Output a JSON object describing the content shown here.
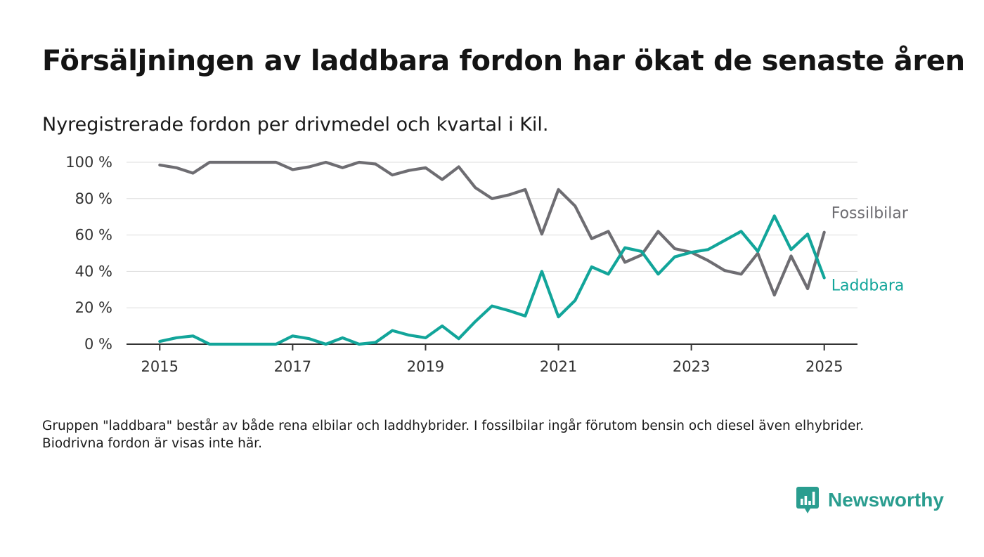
{
  "title": "Försäljningen av laddbara fordon har ökat de senaste åren",
  "subtitle": "Nyregistrerade fordon per drivmedel och kvartal i Kil.",
  "note": "Gruppen \"laddbara\" består av både rena elbilar och laddhybrider. I fossilbilar ingår förutom bensin och diesel även elhybrider. Biodrivna fordon är visas inte här.",
  "brand": {
    "name": "Newsworthy",
    "color": "#2a9d8f",
    "icon": "bar-chart-bubble-icon"
  },
  "chart_data": {
    "type": "line",
    "title": "Försäljningen av laddbara fordon har ökat de senaste åren",
    "subtitle": "Nyregistrerade fordon per drivmedel och kvartal i Kil.",
    "xlabel": "",
    "ylabel": "",
    "x": [
      2015.0,
      2015.25,
      2015.5,
      2015.75,
      2016.0,
      2016.25,
      2016.5,
      2016.75,
      2017.0,
      2017.25,
      2017.5,
      2017.75,
      2018.0,
      2018.25,
      2018.5,
      2018.75,
      2019.0,
      2019.25,
      2019.5,
      2019.75,
      2020.0,
      2020.25,
      2020.5,
      2020.75,
      2021.0,
      2021.25,
      2021.5,
      2021.75,
      2022.0,
      2022.25,
      2022.5,
      2022.75,
      2023.0,
      2023.25,
      2023.5,
      2023.75,
      2024.0,
      2024.25,
      2024.5,
      2024.75,
      2025.0
    ],
    "xlim": [
      2014.5,
      2025.5
    ],
    "ylim": [
      0,
      100
    ],
    "x_ticks": [
      2015,
      2017,
      2019,
      2021,
      2023,
      2025
    ],
    "y_ticks": [
      0,
      20,
      40,
      60,
      80,
      100
    ],
    "y_tick_labels": [
      "0 %",
      "20 %",
      "40 %",
      "60 %",
      "80 %",
      "100 %"
    ],
    "grid": "horizontal",
    "legend": "end-of-line labels",
    "series": [
      {
        "name": "Fossilbilar",
        "color": "#6e6d72",
        "values": [
          98.5,
          97,
          94,
          100,
          100,
          100,
          100,
          100,
          96,
          97.5,
          100,
          97,
          100,
          99,
          93,
          95.5,
          97,
          90.5,
          97.5,
          86,
          80,
          82,
          85,
          60.5,
          85,
          76,
          58,
          62,
          45,
          49,
          62,
          52.5,
          50.5,
          46,
          40.5,
          38.5,
          50,
          27,
          48.5,
          30.5,
          61.5
        ]
      },
      {
        "name": "Laddbara",
        "color": "#12a59a",
        "values": [
          1.5,
          3.5,
          4.5,
          0,
          0,
          0,
          0,
          0,
          4.5,
          3,
          0,
          3.5,
          0,
          1,
          7.5,
          5,
          3.5,
          10,
          3,
          12.5,
          21,
          18.5,
          15.5,
          40,
          15,
          24,
          42.5,
          38.5,
          53,
          51,
          38.5,
          48,
          50.5,
          52,
          57,
          62,
          51,
          70.5,
          52,
          60.5,
          36.5
        ]
      }
    ]
  }
}
